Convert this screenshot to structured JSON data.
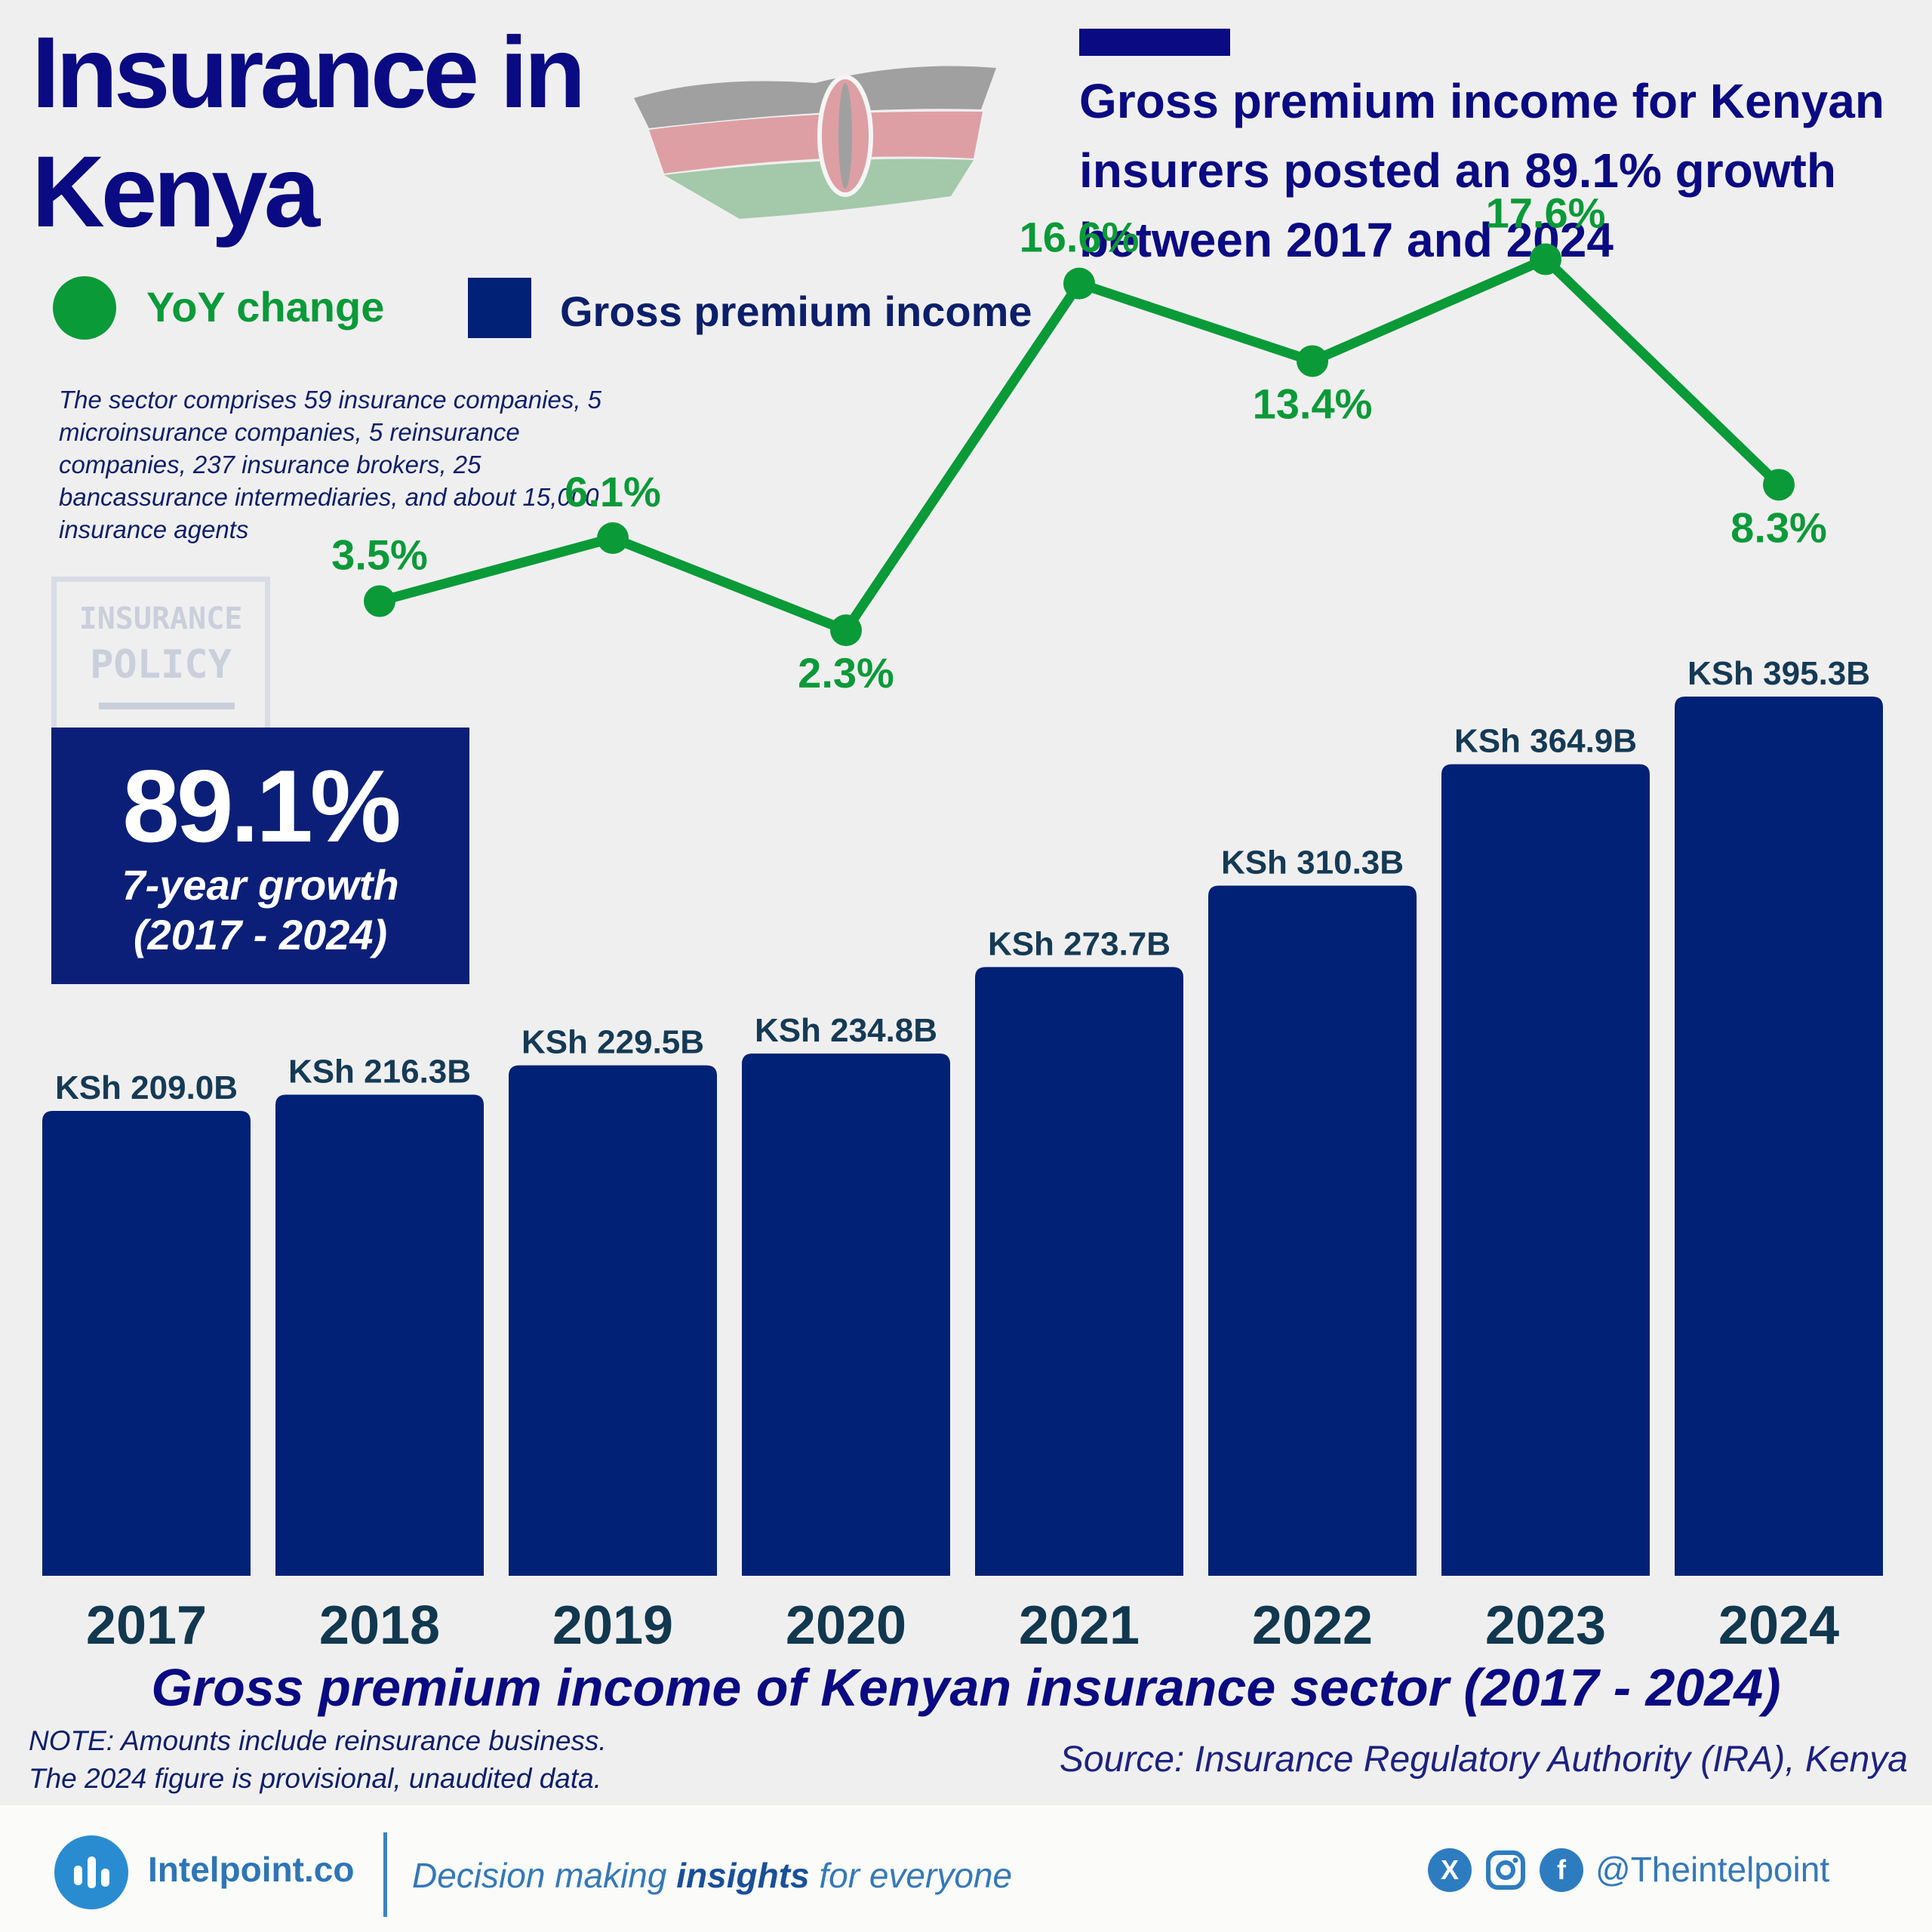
{
  "header": {
    "title_line1": "Insurance in",
    "title_line2": "Kenya",
    "headline": "Gross premium income for Kenyan insurers posted an 89.1% growth between 2017 and 2024"
  },
  "legend": {
    "line_label": "YoY change",
    "bar_label": "Gross premium income"
  },
  "note": "The sector comprises 59 insurance companies, 5 microinsurance companies, 5 reinsurance companies, 237 insurance brokers, 25 bancassurance intermediaries, and about 15,000 insurance agents",
  "stamp": {
    "line1": "INSURANCE",
    "line2": "POLICY"
  },
  "kpi": {
    "value": "89.1%",
    "label_line1": "7-year growth",
    "label_line2": "(2017 - 2024)"
  },
  "chart_data": {
    "type": "bar",
    "title": "Gross premium income of Kenyan insurance sector (2017 - 2024)",
    "categories": [
      "2017",
      "2018",
      "2019",
      "2020",
      "2021",
      "2022",
      "2023",
      "2024"
    ],
    "series": [
      {
        "name": "Gross premium income",
        "type": "bar",
        "unit": "KSh billion",
        "values": [
          209.0,
          216.3,
          229.5,
          234.8,
          273.7,
          310.3,
          364.9,
          395.3
        ],
        "labels": [
          "KSh 209.0B",
          "KSh 216.3B",
          "KSh 229.5B",
          "KSh 234.8B",
          "KSh 273.7B",
          "KSh 310.3B",
          "KSh 364.9B",
          "KSh 395.3B"
        ]
      },
      {
        "name": "YoY change",
        "type": "line",
        "unit": "%",
        "x": [
          "2018",
          "2019",
          "2020",
          "2021",
          "2022",
          "2023",
          "2024"
        ],
        "values": [
          3.5,
          6.1,
          2.3,
          16.6,
          13.4,
          17.6,
          8.3
        ],
        "labels": [
          "3.5%",
          "6.1%",
          "2.3%",
          "16.6%",
          "13.4%",
          "17.6%",
          "8.3%"
        ]
      }
    ],
    "xlabel": "",
    "ylabel": "",
    "grid": false
  },
  "colors": {
    "bar": "#002175",
    "line": "#0a9a38",
    "title": "#0a0a82",
    "bar_label": "#153a55",
    "year_label": "#11384f",
    "background": "#f0eff0"
  },
  "footnote": {
    "line1": "NOTE: Amounts include reinsurance business.",
    "line2": "The 2024 figure is provisional, unaudited data."
  },
  "source": "Source: Insurance Regulatory Authority (IRA), Kenya",
  "footer": {
    "brand": "Intelpoint.co",
    "tagline_pre": "Decision making ",
    "tagline_bold": "insights",
    "tagline_post": " for everyone",
    "handle": "@Theintelpoint",
    "icons": [
      "x-icon",
      "instagram-icon",
      "facebook-icon"
    ]
  }
}
